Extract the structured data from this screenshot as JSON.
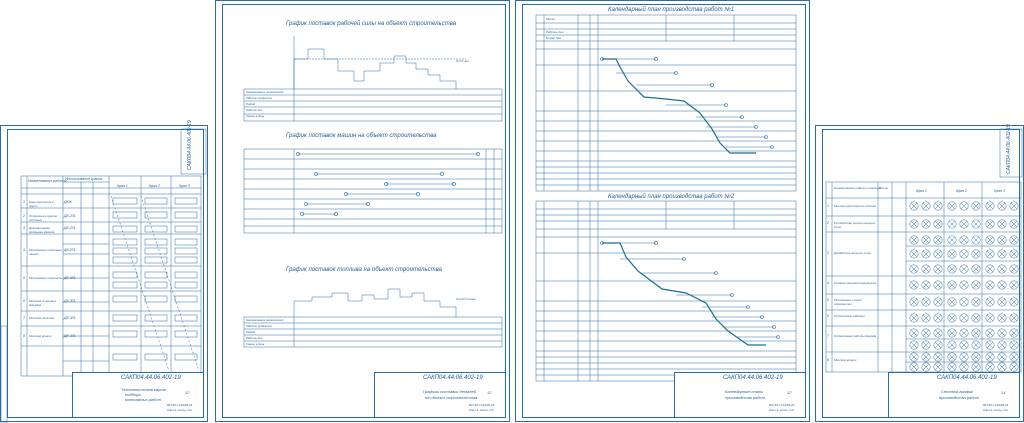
{
  "sheets": [
    {
      "id": "s1",
      "code": "САКП04.44.06.402-19",
      "title_lines": [
        "Технологическая карта",
        "подбора",
        "монтажных работ"
      ],
      "sheet_no": "12",
      "org": [
        "ВСГКА П-34/36-26",
        "Корп 4, заочн. СЭ"
      ],
      "columns": [
        "Наименование работы",
        "Захватка",
        "Кран 1",
        "Кран 2",
        "Кран 3"
      ],
      "col_head_2": "Использование кранов",
      "rows": [
        {
          "n": "1",
          "name": "Кран крепления в грунт",
          "cat": "ДКЖ"
        },
        {
          "n": "2",
          "name": "Отделка на грунте плотные",
          "cat": "ДК-201"
        },
        {
          "n": "3",
          "name": "Декоративная промывка фасада",
          "cat": "ДК-201"
        },
        {
          "n": "4",
          "name": "Монтажные стеновые панели",
          "cat": "ДК-201"
        },
        {
          "n": "5",
          "name": "Монтажные элементы",
          "cat": "ДК-301"
        },
        {
          "n": "6",
          "name": "Монтаж стеновых фасадов",
          "cat": "ДК-301"
        },
        {
          "n": "7",
          "name": "Монтаж лестниц",
          "cat": "ДК-301"
        },
        {
          "n": "8",
          "name": "Монтаж кровли",
          "cat": "ДК-301"
        }
      ]
    },
    {
      "id": "s2",
      "code": "САКП04.44.06.402-19",
      "title_lines": [
        "Графики поставки деталей",
        "на объект строительства"
      ],
      "sheet_no": "12",
      "org": [
        "ВСГКА П-34/36-26",
        "Корп 4, заочн. СЭ"
      ],
      "graphs": [
        {
          "title": "График поставок рабочей силы на объект строительства",
          "note": "N=37 чел."
        },
        {
          "title": "График поставок машин на объект строительства"
        },
        {
          "title": "График поставок топлива на объект строительства",
          "note": "N=120 т/смен"
        }
      ],
      "row_labels": [
        "Наименование показателей",
        "Рабочие профессии",
        "Разряд",
        "Рабочие дни",
        "Смены в день"
      ]
    },
    {
      "id": "s3",
      "code": "САКП04.44.06.402-19",
      "title_lines": [
        "Календарные планы",
        "производства работ"
      ],
      "sheet_no": "12",
      "org": [
        "ВСГКА П-34/36-26",
        "Корп 4, заочн. СЭ"
      ],
      "plans": [
        {
          "title": "Календарный план производства работ №1"
        },
        {
          "title": "Календарный план производства работ №2"
        }
      ],
      "head_labels": [
        "Месяц",
        "Рабочие дни",
        "Номер дня"
      ]
    },
    {
      "id": "s4",
      "code": "САКП04.44.06.402-19",
      "title_lines": [
        "Сетевой график",
        "производства работ"
      ],
      "sheet_no": "14",
      "org": [
        "ВСГКА П-34/36-26",
        "Корп 4, заочн. СЭ"
      ],
      "columns": [
        "Наименование рабочих операций",
        "Кол-во",
        "Кран 1",
        "Кран 2",
        "Кран 3"
      ],
      "rows": [
        {
          "n": "1",
          "name": "Монтаж крепления в колонне"
        },
        {
          "n": "2",
          "name": "Устройство ригеля несущих стен"
        },
        {
          "n": "3",
          "name": "Доработка несущих стен"
        },
        {
          "n": "4",
          "name": "Укладка панелей перекрытия"
        },
        {
          "n": "5",
          "name": "Монтажные стыки перекрытия"
        },
        {
          "n": "6",
          "name": "Отделочные работы"
        },
        {
          "n": "7",
          "name": "Отделочные работы фасада"
        },
        {
          "n": "8",
          "name": "Монтаж кровли"
        }
      ]
    }
  ]
}
